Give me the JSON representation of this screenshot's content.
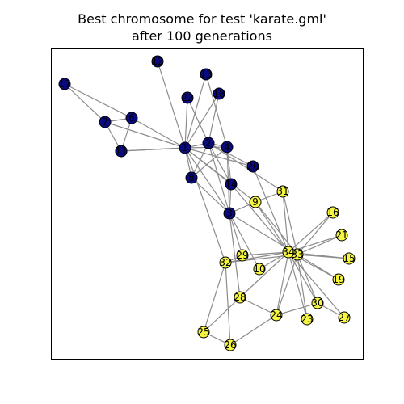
{
  "title": {
    "line1": "Best chromosome for test 'karate.gml'",
    "line2": "after 100 generations"
  },
  "colors": {
    "group_a": "#0a0a80",
    "group_b": "#f5f542",
    "edge": "#8c8c8c",
    "frame": "#000000"
  },
  "nodes": [
    {
      "id": "1",
      "group": "group_a"
    },
    {
      "id": "2",
      "group": "group_a"
    },
    {
      "id": "3",
      "group": "group_a"
    },
    {
      "id": "4",
      "group": "group_a"
    },
    {
      "id": "5",
      "group": "group_a"
    },
    {
      "id": "6",
      "group": "group_a"
    },
    {
      "id": "7",
      "group": "group_a"
    },
    {
      "id": "8",
      "group": "group_a"
    },
    {
      "id": "9",
      "group": "group_b"
    },
    {
      "id": "10",
      "group": "group_b"
    },
    {
      "id": "11",
      "group": "group_a"
    },
    {
      "id": "12",
      "group": "group_a"
    },
    {
      "id": "13",
      "group": "group_a"
    },
    {
      "id": "14",
      "group": "group_a"
    },
    {
      "id": "15",
      "group": "group_b"
    },
    {
      "id": "16",
      "group": "group_b"
    },
    {
      "id": "17",
      "group": "group_a"
    },
    {
      "id": "18",
      "group": "group_a"
    },
    {
      "id": "19",
      "group": "group_b"
    },
    {
      "id": "20",
      "group": "group_a"
    },
    {
      "id": "21",
      "group": "group_b"
    },
    {
      "id": "22",
      "group": "group_a"
    },
    {
      "id": "23",
      "group": "group_b"
    },
    {
      "id": "24",
      "group": "group_b"
    },
    {
      "id": "25",
      "group": "group_b"
    },
    {
      "id": "26",
      "group": "group_b"
    },
    {
      "id": "27",
      "group": "group_b"
    },
    {
      "id": "28",
      "group": "group_b"
    },
    {
      "id": "29",
      "group": "group_b"
    },
    {
      "id": "30",
      "group": "group_b"
    },
    {
      "id": "31",
      "group": "group_b"
    },
    {
      "id": "32",
      "group": "group_b"
    },
    {
      "id": "33",
      "group": "group_b"
    },
    {
      "id": "34",
      "group": "group_b"
    }
  ],
  "edges": [
    [
      "1",
      "2"
    ],
    [
      "1",
      "3"
    ],
    [
      "1",
      "4"
    ],
    [
      "1",
      "5"
    ],
    [
      "1",
      "6"
    ],
    [
      "1",
      "7"
    ],
    [
      "1",
      "8"
    ],
    [
      "1",
      "9"
    ],
    [
      "1",
      "11"
    ],
    [
      "1",
      "12"
    ],
    [
      "1",
      "13"
    ],
    [
      "1",
      "14"
    ],
    [
      "1",
      "18"
    ],
    [
      "1",
      "20"
    ],
    [
      "1",
      "22"
    ],
    [
      "1",
      "32"
    ],
    [
      "2",
      "3"
    ],
    [
      "2",
      "4"
    ],
    [
      "2",
      "8"
    ],
    [
      "2",
      "14"
    ],
    [
      "2",
      "18"
    ],
    [
      "2",
      "20"
    ],
    [
      "2",
      "22"
    ],
    [
      "2",
      "31"
    ],
    [
      "3",
      "4"
    ],
    [
      "3",
      "8"
    ],
    [
      "3",
      "9"
    ],
    [
      "3",
      "10"
    ],
    [
      "3",
      "14"
    ],
    [
      "3",
      "28"
    ],
    [
      "3",
      "29"
    ],
    [
      "3",
      "33"
    ],
    [
      "4",
      "8"
    ],
    [
      "4",
      "13"
    ],
    [
      "4",
      "14"
    ],
    [
      "5",
      "7"
    ],
    [
      "5",
      "11"
    ],
    [
      "6",
      "7"
    ],
    [
      "6",
      "11"
    ],
    [
      "6",
      "17"
    ],
    [
      "7",
      "17"
    ],
    [
      "9",
      "31"
    ],
    [
      "9",
      "33"
    ],
    [
      "9",
      "34"
    ],
    [
      "10",
      "34"
    ],
    [
      "14",
      "34"
    ],
    [
      "15",
      "33"
    ],
    [
      "15",
      "34"
    ],
    [
      "16",
      "33"
    ],
    [
      "16",
      "34"
    ],
    [
      "19",
      "33"
    ],
    [
      "19",
      "34"
    ],
    [
      "20",
      "34"
    ],
    [
      "21",
      "33"
    ],
    [
      "21",
      "34"
    ],
    [
      "23",
      "33"
    ],
    [
      "23",
      "34"
    ],
    [
      "24",
      "26"
    ],
    [
      "24",
      "28"
    ],
    [
      "24",
      "30"
    ],
    [
      "24",
      "33"
    ],
    [
      "24",
      "34"
    ],
    [
      "25",
      "26"
    ],
    [
      "25",
      "28"
    ],
    [
      "25",
      "32"
    ],
    [
      "26",
      "32"
    ],
    [
      "27",
      "30"
    ],
    [
      "27",
      "34"
    ],
    [
      "28",
      "34"
    ],
    [
      "29",
      "32"
    ],
    [
      "29",
      "34"
    ],
    [
      "30",
      "33"
    ],
    [
      "30",
      "34"
    ],
    [
      "31",
      "33"
    ],
    [
      "31",
      "34"
    ],
    [
      "32",
      "33"
    ],
    [
      "32",
      "34"
    ],
    [
      "33",
      "34"
    ]
  ]
}
